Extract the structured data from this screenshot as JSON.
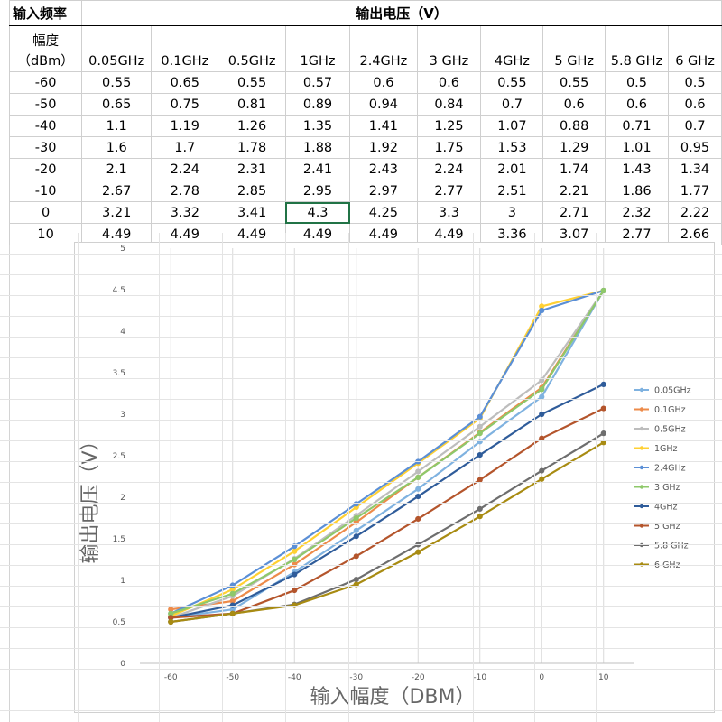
{
  "table": {
    "corner_label": "输入频率",
    "group_label": "输出电压（V）",
    "row_header_label_line1": "幅度",
    "row_header_label_line2": "（dBm）",
    "columns": [
      "0.05GHz",
      "0.1GHz",
      "0.5GHz",
      "1GHz",
      "2.4GHz",
      "3 GHz",
      "4GHz",
      "5 GHz",
      "5.8 GHz",
      "6 GHz"
    ],
    "rows": [
      {
        "amp": "-60",
        "values": [
          "0.55",
          "0.65",
          "0.55",
          "0.57",
          "0.6",
          "0.6",
          "0.55",
          "0.55",
          "0.5",
          "0.5"
        ]
      },
      {
        "amp": "-50",
        "values": [
          "0.65",
          "0.75",
          "0.81",
          "0.89",
          "0.94",
          "0.84",
          "0.7",
          "0.6",
          "0.6",
          "0.6"
        ]
      },
      {
        "amp": "-40",
        "values": [
          "1.1",
          "1.19",
          "1.26",
          "1.35",
          "1.41",
          "1.25",
          "1.07",
          "0.88",
          "0.71",
          "0.7"
        ]
      },
      {
        "amp": "-30",
        "values": [
          "1.6",
          "1.7",
          "1.78",
          "1.88",
          "1.92",
          "1.75",
          "1.53",
          "1.29",
          "1.01",
          "0.95"
        ]
      },
      {
        "amp": "-20",
        "values": [
          "2.1",
          "2.24",
          "2.31",
          "2.41",
          "2.43",
          "2.24",
          "2.01",
          "1.74",
          "1.43",
          "1.34"
        ]
      },
      {
        "amp": "-10",
        "values": [
          "2.67",
          "2.78",
          "2.85",
          "2.95",
          "2.97",
          "2.77",
          "2.51",
          "2.21",
          "1.86",
          "1.77"
        ]
      },
      {
        "amp": "0",
        "values": [
          "3.21",
          "3.32",
          "3.41",
          "4.3",
          "4.25",
          "3.3",
          "3",
          "2.71",
          "2.32",
          "2.22"
        ]
      },
      {
        "amp": "10",
        "values": [
          "4.49",
          "4.49",
          "4.49",
          "4.49",
          "4.49",
          "4.49",
          "3.36",
          "3.07",
          "2.77",
          "2.66"
        ]
      }
    ],
    "selected_cell": {
      "row": 6,
      "col": 3
    }
  },
  "chart_data": {
    "type": "line",
    "title": "",
    "xlabel": "输入幅度（DBM）",
    "ylabel": "输出电压（V）",
    "x": [
      -60,
      -50,
      -40,
      -30,
      -20,
      -10,
      0,
      10
    ],
    "xticks": [
      "-60",
      "-50",
      "-40",
      "-30",
      "-20",
      "-10",
      "0",
      "10"
    ],
    "ylim": [
      0,
      5
    ],
    "yticks": [
      "0",
      "0.5",
      "1",
      "1.5",
      "2",
      "2.5",
      "3",
      "3.5",
      "4",
      "4.5",
      "5"
    ],
    "grid": "vertical",
    "legend": "right",
    "series": [
      {
        "name": "0.05GHz",
        "color": "#7fb2e0",
        "values": [
          0.55,
          0.65,
          1.1,
          1.6,
          2.1,
          2.67,
          3.21,
          4.49
        ]
      },
      {
        "name": "0.1GHz",
        "color": "#ed8b4a",
        "values": [
          0.65,
          0.75,
          1.19,
          1.7,
          2.24,
          2.78,
          3.32,
          4.49
        ]
      },
      {
        "name": "0.5GHz",
        "color": "#bdbdbd",
        "values": [
          0.55,
          0.81,
          1.26,
          1.78,
          2.31,
          2.85,
          3.41,
          4.49
        ]
      },
      {
        "name": "1GHz",
        "color": "#ffd033",
        "values": [
          0.57,
          0.89,
          1.35,
          1.88,
          2.41,
          2.95,
          4.3,
          4.49
        ]
      },
      {
        "name": "2.4GHz",
        "color": "#5b8fd6",
        "values": [
          0.6,
          0.94,
          1.41,
          1.92,
          2.43,
          2.97,
          4.25,
          4.49
        ]
      },
      {
        "name": "3 GHz",
        "color": "#8ec86a",
        "values": [
          0.6,
          0.84,
          1.25,
          1.75,
          2.24,
          2.77,
          3.3,
          4.49
        ]
      },
      {
        "name": "4GHz",
        "color": "#2f5c9a",
        "values": [
          0.55,
          0.7,
          1.07,
          1.53,
          2.01,
          2.51,
          3.0,
          3.36
        ]
      },
      {
        "name": "5 GHz",
        "color": "#b4552c",
        "values": [
          0.55,
          0.6,
          0.88,
          1.29,
          1.74,
          2.21,
          2.71,
          3.07
        ]
      },
      {
        "name": "5.8 GHz",
        "color": "#6e6e6e",
        "values": [
          0.5,
          0.6,
          0.71,
          1.01,
          1.43,
          1.86,
          2.32,
          2.77
        ]
      },
      {
        "name": "6 GHz",
        "color": "#a88b12",
        "values": [
          0.5,
          0.6,
          0.7,
          0.95,
          1.34,
          1.77,
          2.22,
          2.66
        ]
      }
    ]
  }
}
